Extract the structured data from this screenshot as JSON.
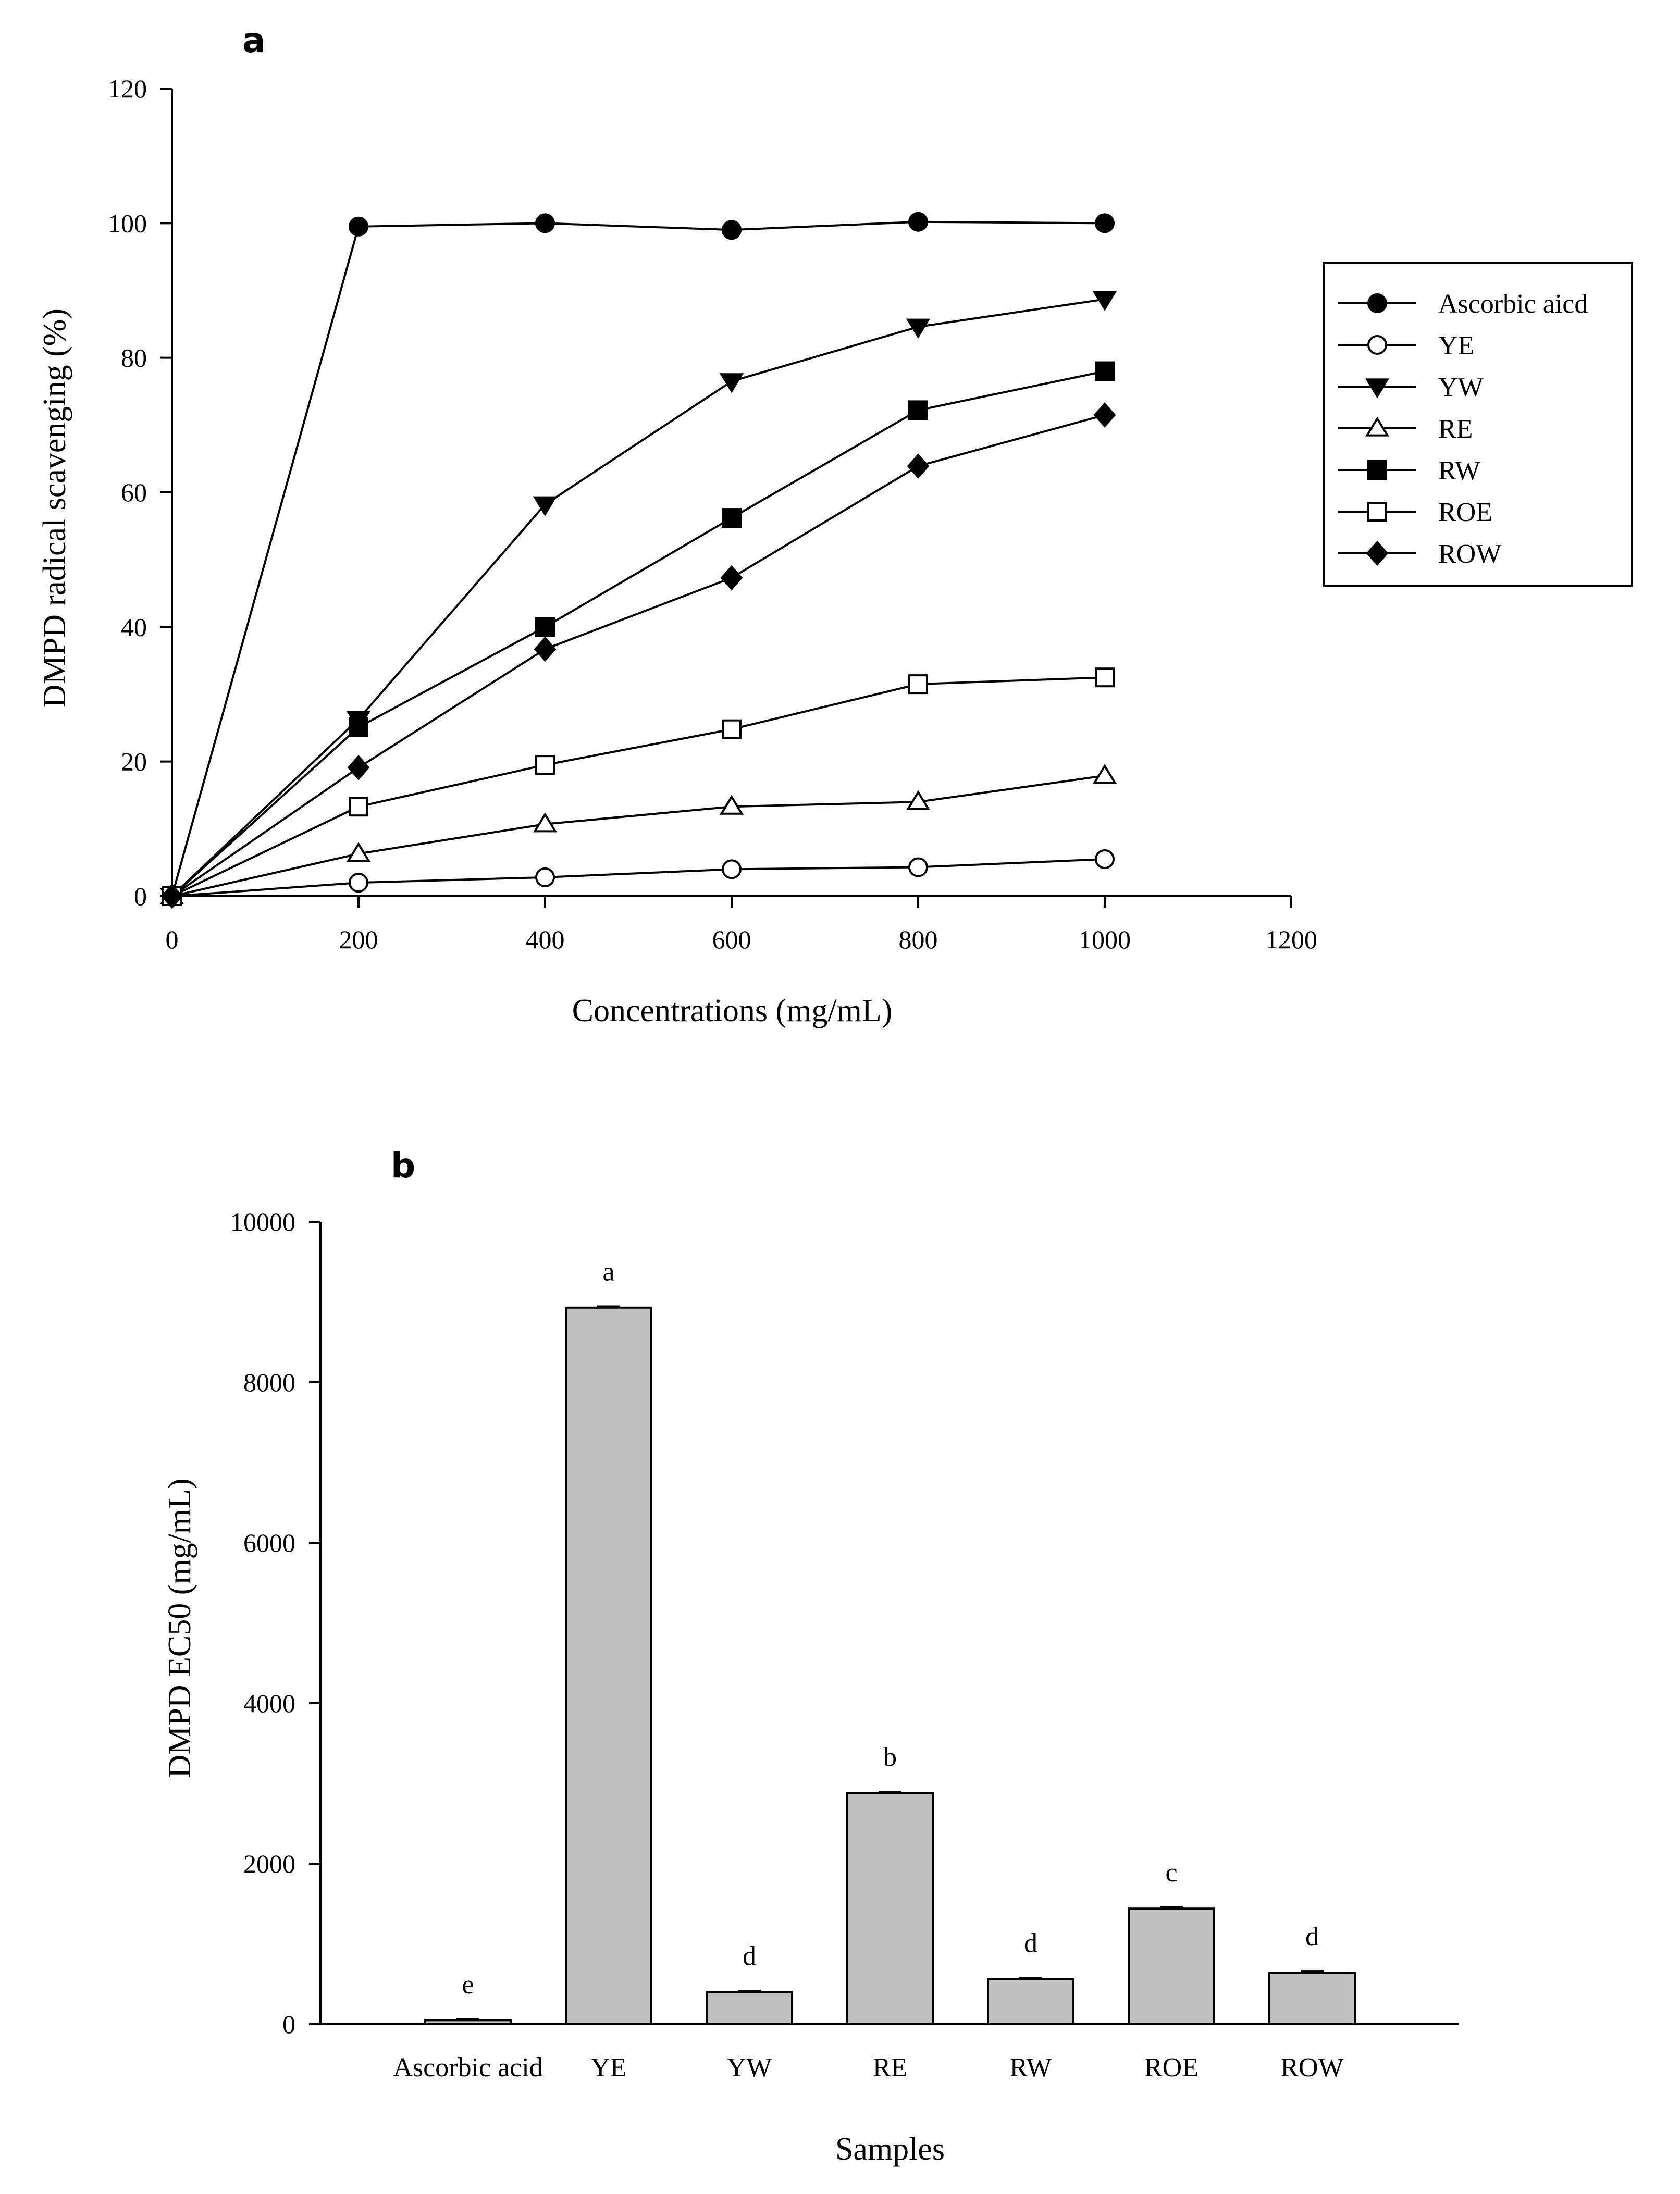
{
  "chart_data": [
    {
      "panel_label": "a",
      "type": "line",
      "title": "",
      "xlabel": "Concentrations (mg/mL)",
      "ylabel": "DMPD radical scavenging (%)",
      "xlim": [
        0,
        1200
      ],
      "ylim": [
        0,
        120
      ],
      "x_ticks": [
        "0",
        "200",
        "400",
        "600",
        "800",
        "1000",
        "1200"
      ],
      "y_ticks": [
        "0",
        "20",
        "40",
        "60",
        "80",
        "100",
        "120"
      ],
      "grid": false,
      "legend_position": "right",
      "x": [
        0,
        200,
        400,
        600,
        800,
        1000
      ],
      "series": [
        {
          "name": "Ascorbic aicd",
          "marker": "circle-filled",
          "values": [
            0,
            99.5,
            100,
            99,
            100.2,
            100
          ]
        },
        {
          "name": "YE",
          "marker": "circle-open",
          "values": [
            0,
            2,
            2.8,
            4,
            4.3,
            5.5
          ]
        },
        {
          "name": "YW",
          "marker": "triangle-down-filled",
          "values": [
            0,
            26.3,
            58.2,
            76.5,
            84.6,
            88.7
          ]
        },
        {
          "name": "RE",
          "marker": "triangle-up-open",
          "values": [
            0,
            6.3,
            10.7,
            13.3,
            14,
            17.9
          ]
        },
        {
          "name": "RW",
          "marker": "square-filled",
          "values": [
            0,
            25.1,
            40,
            56.2,
            72.2,
            78
          ]
        },
        {
          "name": "ROE",
          "marker": "square-open",
          "values": [
            0,
            13.3,
            19.5,
            24.8,
            31.5,
            32.5
          ]
        },
        {
          "name": "ROW",
          "marker": "diamond-filled",
          "values": [
            0,
            19.1,
            36.7,
            47.3,
            63.9,
            71.5
          ]
        }
      ]
    },
    {
      "panel_label": "b",
      "type": "bar",
      "title": "",
      "xlabel": "Samples",
      "ylabel": "DMPD EC50 (mg/mL)",
      "ylim": [
        0,
        10000
      ],
      "y_ticks": [
        "0",
        "2000",
        "4000",
        "6000",
        "8000",
        "10000"
      ],
      "grid": false,
      "bar_color": "#c0c0c0",
      "categories": [
        "Ascorbic acid",
        "YE",
        "YW",
        "RE",
        "RW",
        "ROE",
        "ROW"
      ],
      "values": [
        50,
        8930,
        400,
        2880,
        560,
        1440,
        640
      ],
      "errors": [
        10,
        15,
        15,
        15,
        15,
        15,
        15
      ],
      "significance_letters": [
        "e",
        "a",
        "d",
        "b",
        "d",
        "c",
        "d"
      ]
    }
  ]
}
